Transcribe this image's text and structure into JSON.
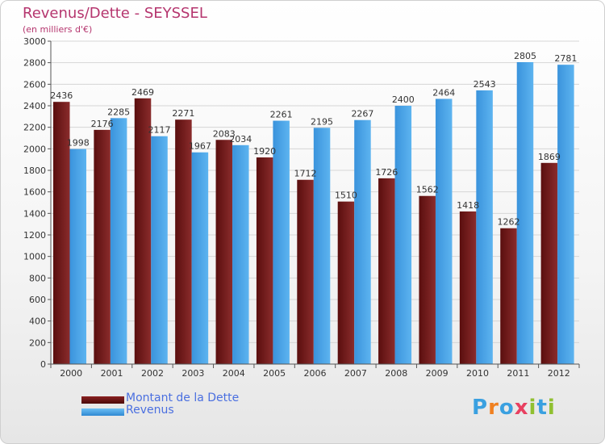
{
  "chart_data": {
    "type": "bar",
    "title": "Revenus/Dette - SEYSSEL",
    "subtitle": "(en milliers d'€)",
    "categories": [
      "2000",
      "2001",
      "2002",
      "2003",
      "2004",
      "2005",
      "2006",
      "2007",
      "2008",
      "2009",
      "2010",
      "2011",
      "2012"
    ],
    "series": [
      {
        "name": "Montant de la Dette",
        "color": "#6e1414",
        "values": [
          2436,
          2176,
          2469,
          2271,
          2083,
          1920,
          1712,
          1510,
          1726,
          1562,
          1418,
          1262,
          1869
        ]
      },
      {
        "name": "Revenus",
        "color": "#3f9be0",
        "values": [
          1998,
          2285,
          2117,
          1967,
          2034,
          2261,
          2195,
          2267,
          2400,
          2464,
          2543,
          2805,
          2781
        ]
      }
    ],
    "ylim": [
      0,
      3000
    ],
    "yticks": [
      0,
      200,
      400,
      600,
      800,
      1000,
      1200,
      1400,
      1600,
      1800,
      2000,
      2200,
      2400,
      2600,
      2800,
      3000
    ],
    "grid": true,
    "legend": "bottom-left"
  },
  "logo": {
    "letters": [
      "P",
      "r",
      "o",
      "x",
      "i",
      "t",
      "i"
    ],
    "colors": [
      "#3aa0e0",
      "#f08020",
      "#3aa0e0",
      "#e84060",
      "#90c030",
      "#3aa0e0",
      "#90c030"
    ]
  }
}
